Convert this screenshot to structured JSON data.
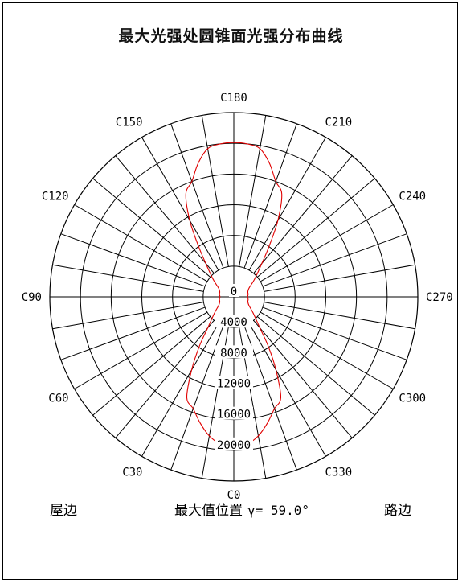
{
  "page": {
    "title": "最大光强处圆锥面光强分布曲线",
    "left_label": "屋边",
    "right_label": "路边",
    "max_position_label": "最大值位置",
    "max_gamma_text": "γ= 59.0°"
  },
  "chart_data": {
    "type": "polar",
    "title": "最大光强处圆锥面光强分布曲线",
    "radial_ticks": [
      0,
      4000,
      8000,
      12000,
      16000,
      20000
    ],
    "radial_tick_labels": [
      "0",
      "4000",
      "8000",
      "12000",
      "16000",
      "20000"
    ],
    "rmax": 24000,
    "angular_labels": [
      "C0",
      "C30",
      "C60",
      "C90",
      "C120",
      "C150",
      "C180",
      "C210",
      "C240",
      "C270",
      "C300",
      "C330"
    ],
    "angular_label_angles": [
      0,
      30,
      60,
      90,
      120,
      150,
      180,
      210,
      240,
      270,
      300,
      330
    ],
    "spoke_step_deg": 10,
    "colors": {
      "curve": "#e00000",
      "grid": "#000000"
    },
    "series": [
      {
        "c_angles": [
          0,
          5,
          10,
          15,
          20,
          25,
          30,
          35,
          40,
          50,
          60,
          70,
          80,
          90,
          100,
          110,
          120,
          130,
          140,
          145,
          150,
          155,
          160,
          165,
          170,
          175,
          180,
          185,
          190,
          195,
          200,
          205,
          210,
          215,
          220,
          230,
          240,
          250,
          260,
          270,
          280,
          290,
          300,
          310,
          320,
          325,
          330,
          335,
          340,
          345,
          350,
          355
        ],
        "intensity": [
          19600,
          19300,
          18400,
          17000,
          15500,
          14500,
          11000,
          7800,
          5300,
          3300,
          2300,
          1950,
          1900,
          1800,
          1900,
          1950,
          2300,
          3500,
          5700,
          8000,
          11500,
          14800,
          16000,
          18000,
          19600,
          20000,
          20100,
          20000,
          19600,
          18000,
          16000,
          14800,
          11500,
          8000,
          5700,
          3500,
          2300,
          1950,
          1900,
          1800,
          1900,
          1950,
          2300,
          3300,
          5300,
          7800,
          11000,
          14500,
          15500,
          17000,
          18400,
          19300
        ]
      }
    ]
  }
}
